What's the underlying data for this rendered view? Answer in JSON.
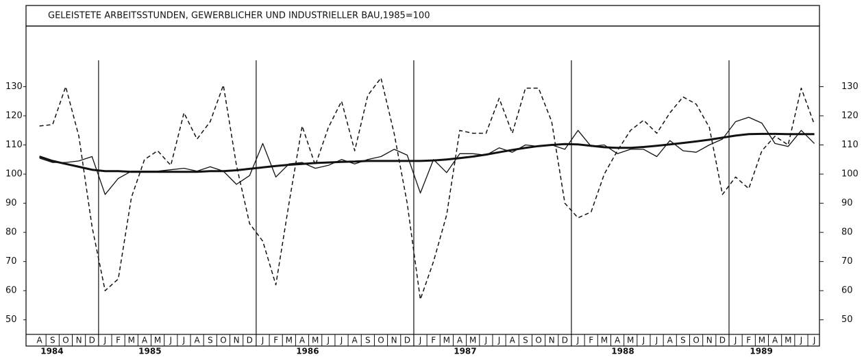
{
  "chart_data": {
    "type": "line",
    "title": "GELEISTETE ARBEITSSTUNDEN, GEWERBLICHER UND INDUSTRIELLER BAU,1985=100",
    "categories": [
      "A",
      "S",
      "O",
      "N",
      "D",
      "J",
      "F",
      "M",
      "A",
      "M",
      "J",
      "J",
      "A",
      "S",
      "O",
      "N",
      "D",
      "J",
      "F",
      "M",
      "A",
      "M",
      "J",
      "J",
      "A",
      "S",
      "O",
      "N",
      "D",
      "J",
      "F",
      "M",
      "A",
      "M",
      "J",
      "J",
      "A",
      "S",
      "O",
      "N",
      "D",
      "J",
      "F",
      "M",
      "A",
      "M",
      "J",
      "J",
      "A",
      "S",
      "O",
      "N",
      "D",
      "J",
      "F",
      "M",
      "A",
      "M",
      "J",
      "J"
    ],
    "years": [
      "1984",
      "1985",
      "1986",
      "1987",
      "1988",
      "1989"
    ],
    "ylim": [
      45,
      150.8
    ],
    "yticks": [
      50,
      60,
      70,
      80,
      90,
      100,
      110,
      120,
      130
    ],
    "series": [
      {
        "color": "#111",
        "style": "dashed",
        "width": 1.5,
        "values": [
          116.5,
          117,
          130,
          113,
          82,
          60,
          64,
          92,
          105,
          108,
          103,
          121,
          112,
          118,
          130.5,
          103,
          83,
          77,
          62,
          90,
          116.5,
          103,
          116,
          125,
          108,
          127,
          133,
          114,
          90,
          57,
          70,
          86,
          115,
          114,
          114,
          126,
          114,
          129.5,
          129.5,
          118,
          90,
          85,
          87,
          100,
          108,
          115,
          118.5,
          114,
          121,
          126.5,
          124,
          116,
          93,
          99,
          95,
          108,
          113,
          110,
          129.5,
          117
        ]
      },
      {
        "color": "#111",
        "style": "solid",
        "width": 1.3,
        "values": [
          105.5,
          104,
          104,
          104.5,
          106,
          93,
          98.5,
          101,
          101,
          101,
          101.5,
          102,
          101,
          102.5,
          101,
          96.5,
          99.5,
          110.5,
          99,
          103.5,
          104,
          102,
          103,
          105,
          103.5,
          105,
          106,
          108.5,
          106.5,
          93.5,
          105,
          100.5,
          107,
          107,
          106.5,
          109,
          107.5,
          110,
          109.5,
          110,
          108.5,
          115,
          109.5,
          110,
          107,
          108.5,
          108.5,
          106,
          111.5,
          108,
          107.5,
          110,
          112,
          118,
          119.5,
          117.5,
          110.5,
          109.5,
          115,
          110.5
        ]
      },
      {
        "color": "#111",
        "style": "solid",
        "width": 3,
        "values": [
          106,
          104.5,
          103.5,
          102.5,
          101.5,
          101,
          101,
          100.8,
          100.8,
          100.8,
          100.8,
          100.8,
          100.8,
          101,
          101,
          101.3,
          101.8,
          102.3,
          102.8,
          103.2,
          103.5,
          103.8,
          104,
          104.2,
          104.3,
          104.5,
          104.5,
          104.5,
          104.5,
          104.5,
          104.7,
          105,
          105.5,
          106,
          106.7,
          107.5,
          108.3,
          109,
          109.6,
          110,
          110.3,
          110.2,
          109.7,
          109.2,
          109,
          109,
          109.3,
          109.7,
          110.2,
          110.7,
          111.2,
          111.8,
          112.5,
          113.2,
          113.7,
          113.8,
          113.8,
          113.7,
          113.7,
          113.7
        ]
      }
    ]
  }
}
